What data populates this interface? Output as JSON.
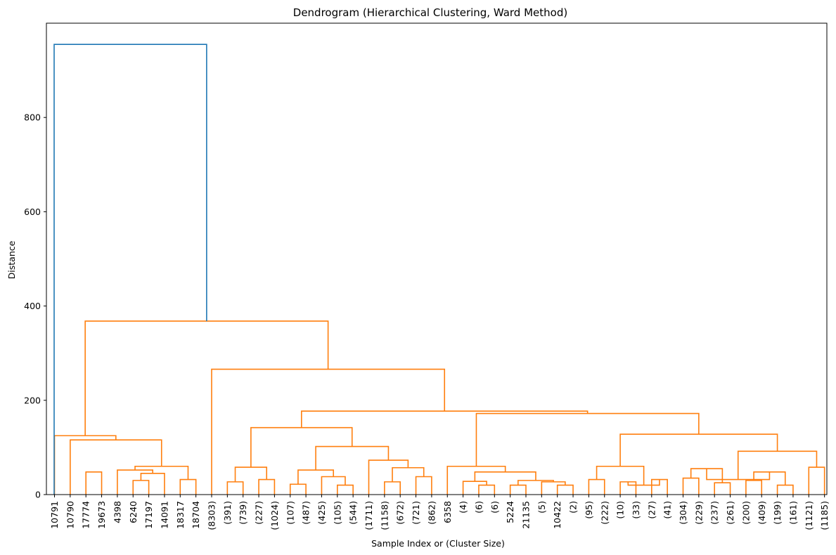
{
  "chart_data": {
    "type": "dendrogram",
    "title": "Dendrogram (Hierarchical Clustering, Ward Method)",
    "xlabel": "Sample Index or (Cluster Size)",
    "ylabel": "Distance",
    "ylim": [
      0,
      1000
    ],
    "y_ticks": [
      0,
      200,
      400,
      600,
      800
    ],
    "grid": false,
    "legend": "none",
    "colors": {
      "root": "#1f77b4",
      "cluster": "#ff7f0e",
      "axis": "#000000"
    },
    "leaf_labels": [
      "10791",
      "10790",
      "17774",
      "19673",
      "4398",
      "6240",
      "17197",
      "14091",
      "18317",
      "18704",
      "(8303)",
      "(391)",
      "(739)",
      "(227)",
      "(1024)",
      "(107)",
      "(487)",
      "(425)",
      "(105)",
      "(544)",
      "(1711)",
      "(1158)",
      "(672)",
      "(721)",
      "(862)",
      "6358",
      "(4)",
      "(6)",
      "(6)",
      "5224",
      "21135",
      "(5)",
      "10422",
      "(2)",
      "(95)",
      "(222)",
      "(10)",
      "(33)",
      "(27)",
      "(41)",
      "(304)",
      "(229)",
      "(237)",
      "(261)",
      "(200)",
      "(409)",
      "(199)",
      "(161)",
      "(1121)",
      "(1185)"
    ],
    "links": [
      {
        "a": "L5",
        "b": "L6",
        "h": 30
      },
      {
        "a": "L8",
        "b": "L9",
        "h": 32
      },
      {
        "a": "L2",
        "b": "L3",
        "h": 48
      },
      {
        "a": "N0",
        "b": "L7",
        "h": 45
      },
      {
        "a": "L4",
        "b": "N3",
        "h": 52
      },
      {
        "a": "N1",
        "b": "N4",
        "h": 60
      },
      {
        "a": "N5",
        "b": "L1",
        "h": 116
      },
      {
        "a": "N6",
        "b": "L0",
        "h": 125
      },
      {
        "a": "L11",
        "b": "L12",
        "h": 27
      },
      {
        "a": "L13",
        "b": "L14",
        "h": 32
      },
      {
        "a": "N8",
        "b": "N9",
        "h": 58
      },
      {
        "a": "L15",
        "b": "L16",
        "h": 22
      },
      {
        "a": "L18",
        "b": "L19",
        "h": 20
      },
      {
        "a": "L17",
        "b": "N12",
        "h": 38
      },
      {
        "a": "N11",
        "b": "N13",
        "h": 52
      },
      {
        "a": "L21",
        "b": "L22",
        "h": 27
      },
      {
        "a": "L23",
        "b": "L24",
        "h": 38
      },
      {
        "a": "N15",
        "b": "N16",
        "h": 57
      },
      {
        "a": "L20",
        "b": "N17",
        "h": 73
      },
      {
        "a": "N14",
        "b": "N18",
        "h": 102
      },
      {
        "a": "N10",
        "b": "N19",
        "h": 142
      },
      {
        "a": "L27",
        "b": "L28",
        "h": 20
      },
      {
        "a": "L26",
        "b": "N21",
        "h": 28
      },
      {
        "a": "L29",
        "b": "L30",
        "h": 20
      },
      {
        "a": "L32",
        "b": "L33",
        "h": 20
      },
      {
        "a": "L31",
        "b": "N24",
        "h": 27
      },
      {
        "a": "N23",
        "b": "N25",
        "h": 30
      },
      {
        "a": "N22",
        "b": "N26",
        "h": 48
      },
      {
        "a": "L25",
        "b": "N27",
        "h": 60
      },
      {
        "a": "L34",
        "b": "L35",
        "h": 32
      },
      {
        "a": "L36",
        "b": "L37",
        "h": 27
      },
      {
        "a": "L38",
        "b": "L39",
        "h": 32
      },
      {
        "a": "N30",
        "b": "N31",
        "h": 20
      },
      {
        "a": "N29",
        "b": "N32",
        "h": 60
      },
      {
        "a": "L40",
        "b": "L41",
        "h": 35
      },
      {
        "a": "L42",
        "b": "L43",
        "h": 25
      },
      {
        "a": "N34",
        "b": "N35",
        "h": 55
      },
      {
        "a": "L44",
        "b": "L45",
        "h": 30
      },
      {
        "a": "L46",
        "b": "L47",
        "h": 20
      },
      {
        "a": "N37",
        "b": "N38",
        "h": 48
      },
      {
        "a": "N36",
        "b": "N39",
        "h": 32
      },
      {
        "a": "L48",
        "b": "L49",
        "h": 58
      },
      {
        "a": "N40",
        "b": "N41",
        "h": 92
      },
      {
        "a": "N33",
        "b": "N42",
        "h": 128
      },
      {
        "a": "N28",
        "b": "N43",
        "h": 172
      },
      {
        "a": "N20",
        "b": "N44",
        "h": 177
      },
      {
        "a": "L10",
        "b": "N45",
        "h": 266
      },
      {
        "a": "N7",
        "b": "N46",
        "h": 368
      },
      {
        "a": "N47",
        "b": "R",
        "h": 955
      }
    ]
  }
}
